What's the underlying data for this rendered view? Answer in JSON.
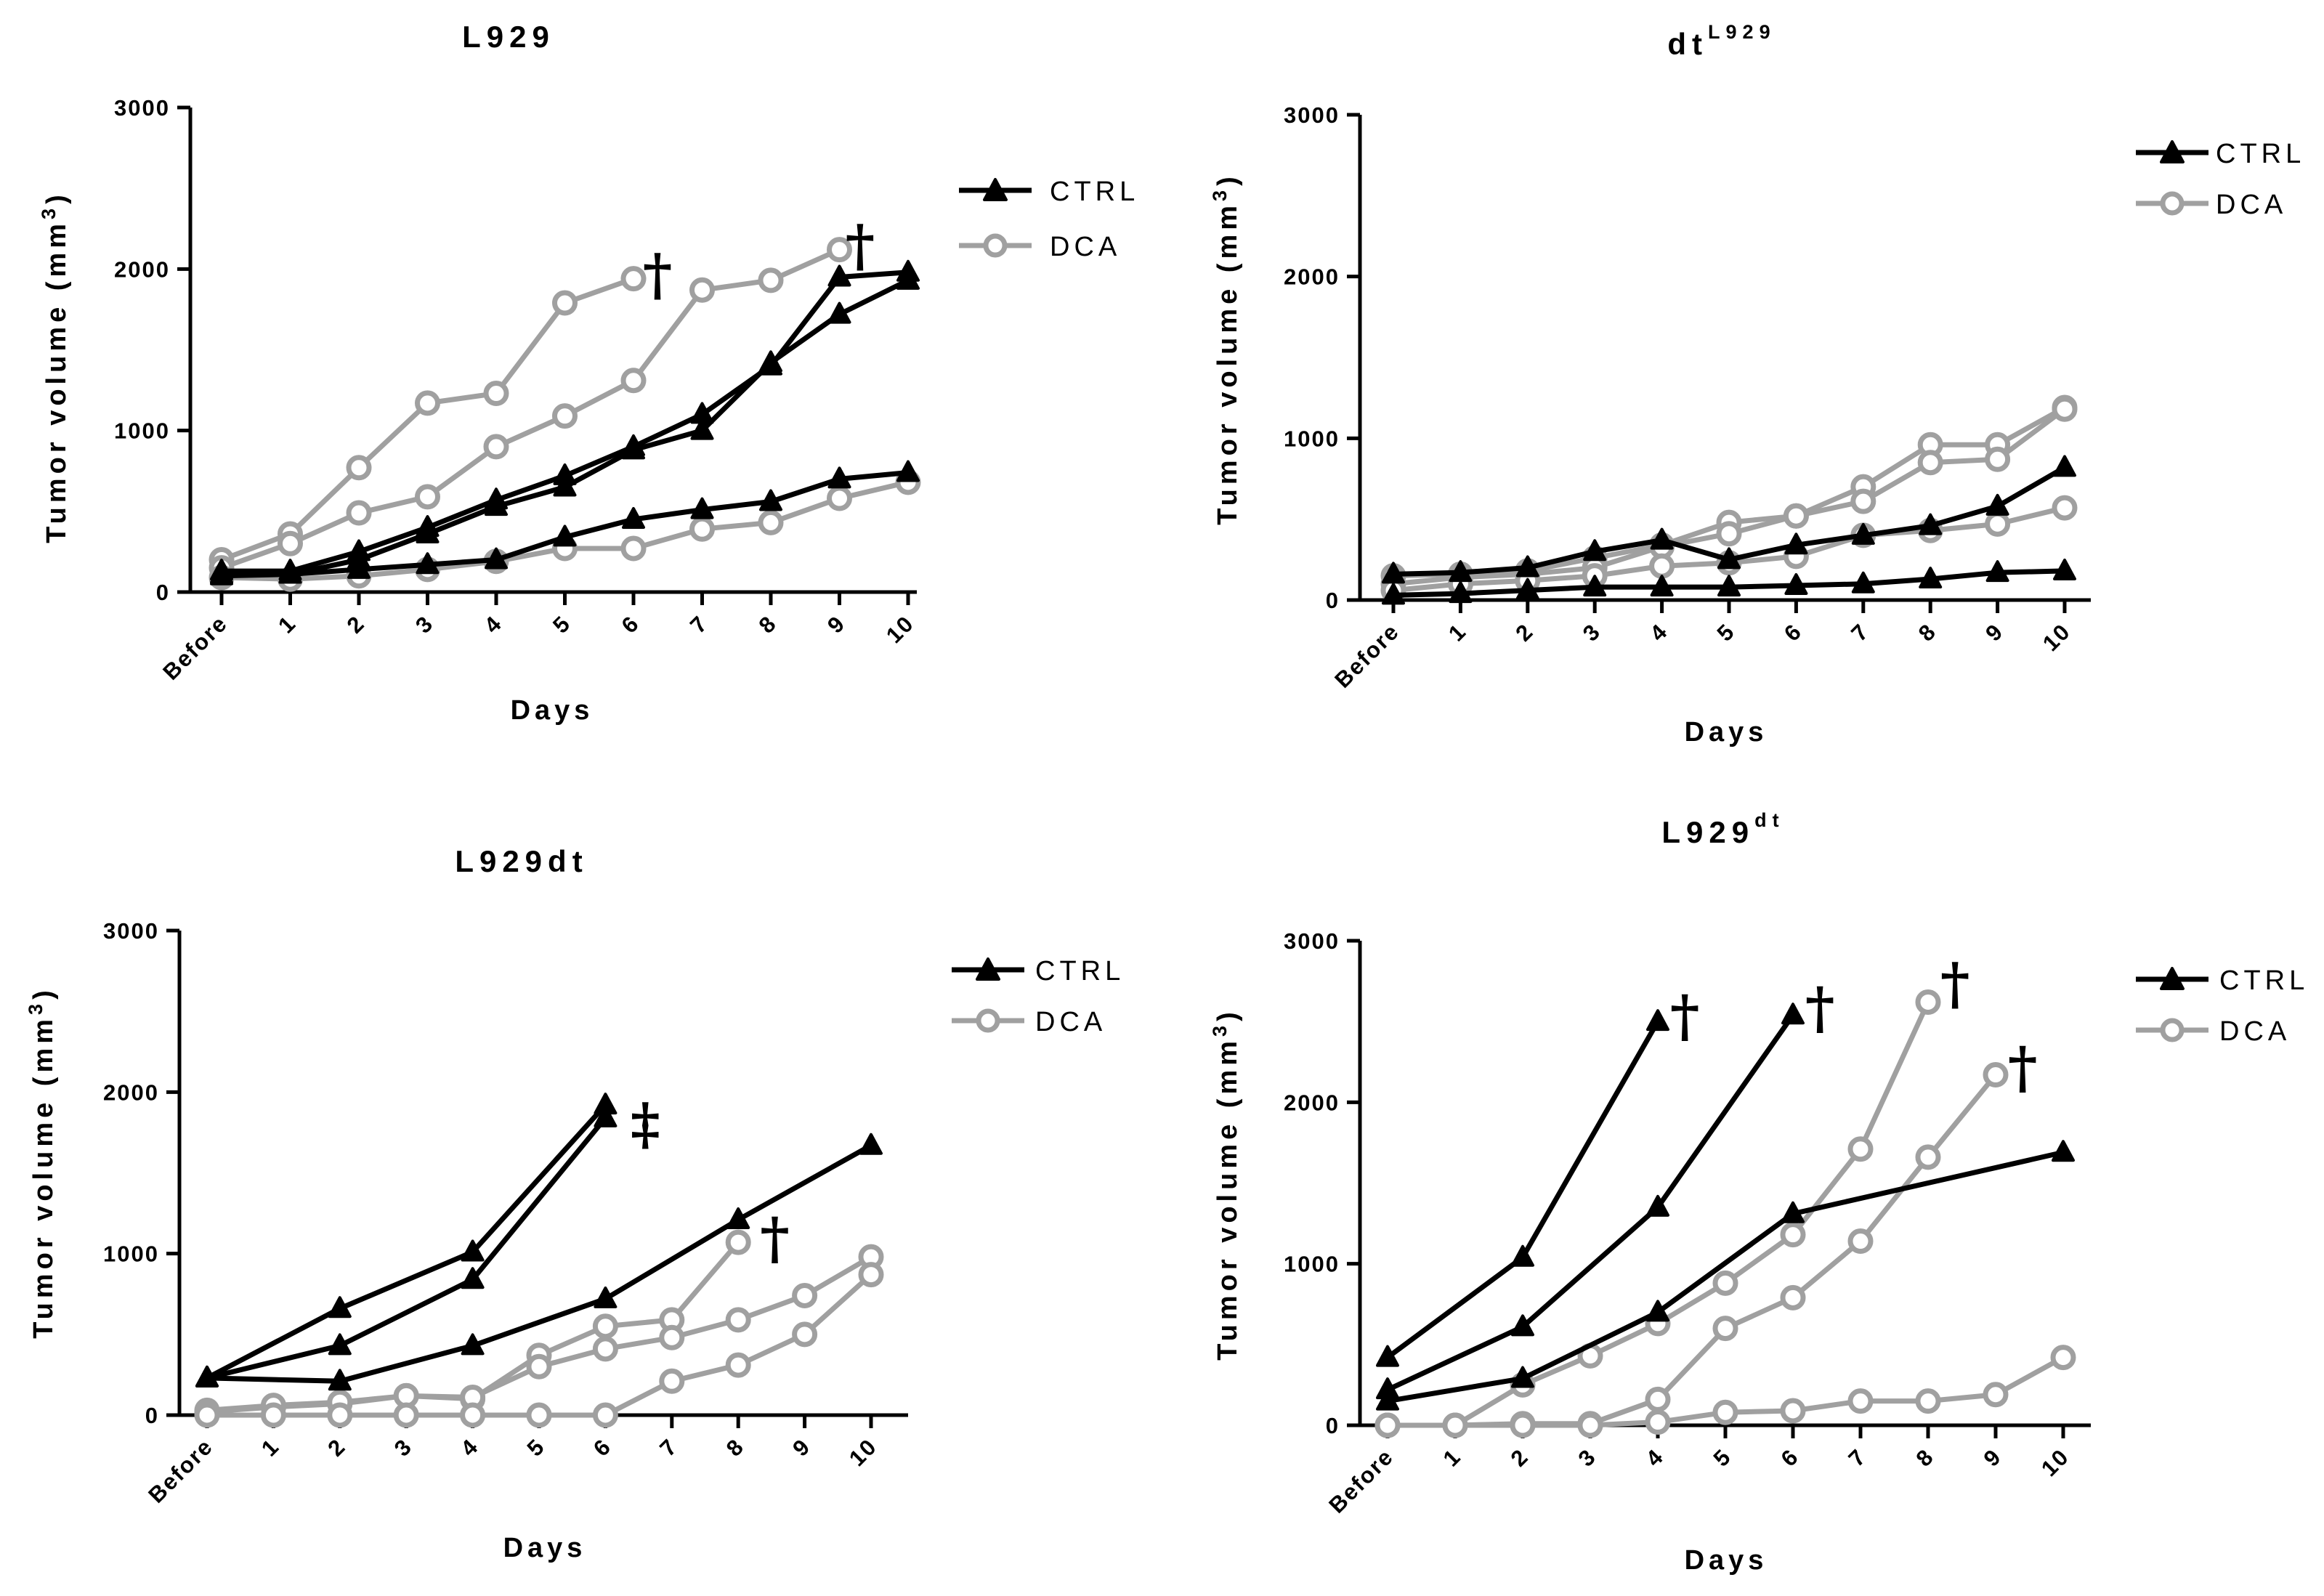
{
  "chart_data": [
    {
      "type": "line",
      "title": "L929",
      "title_sup": "",
      "xlabel": "Days",
      "ylabel": "Tumor volume (mm",
      "ylabel_sup": "3",
      "ylabel_close": ")",
      "ylim": [
        0,
        3000
      ],
      "yticks": [
        0,
        1000,
        2000,
        3000
      ],
      "categories": [
        "Before",
        "1",
        "2",
        "3",
        "4",
        "5",
        "6",
        "7",
        "8",
        "9",
        "10"
      ],
      "legend": [
        {
          "name": "CTRL",
          "color": "#000000",
          "marker": "triangle"
        },
        {
          "name": "DCA",
          "color": "#a0a0a0",
          "marker": "circle"
        }
      ],
      "series": [
        {
          "name": "CTRL",
          "values": [
            130,
            130,
            250,
            400,
            570,
            720,
            900,
            1100,
            1400,
            1950,
            1980
          ]
        },
        {
          "name": "CTRL",
          "values": [
            110,
            110,
            200,
            360,
            530,
            650,
            880,
            1000,
            1420,
            1720,
            1930
          ]
        },
        {
          "name": "CTRL",
          "values": [
            100,
            110,
            140,
            170,
            200,
            340,
            450,
            510,
            560,
            700,
            740
          ]
        },
        {
          "name": "DCA",
          "values": [
            200,
            360,
            770,
            1170,
            1230,
            1790,
            1940,
            null,
            null,
            null,
            null
          ]
        },
        {
          "name": "DCA",
          "values": [
            150,
            300,
            490,
            590,
            900,
            1090,
            1310,
            1870,
            1930,
            2120,
            null
          ]
        },
        {
          "name": "DCA",
          "values": [
            90,
            80,
            100,
            140,
            190,
            270,
            270,
            390,
            430,
            580,
            680
          ]
        }
      ],
      "annotations": [
        {
          "text": "†",
          "x": 6.35,
          "y": 1960
        },
        {
          "text": "†",
          "x": 9.3,
          "y": 2140
        }
      ]
    },
    {
      "type": "line",
      "title": "dt",
      "title_sup": "L929",
      "xlabel": "Days",
      "ylabel": "Tumor volume (mm",
      "ylabel_sup": "3",
      "ylabel_close": ")",
      "ylim": [
        0,
        3000
      ],
      "yticks": [
        0,
        1000,
        2000,
        3000
      ],
      "categories": [
        "Before",
        "1",
        "2",
        "3",
        "4",
        "5",
        "6",
        "7",
        "8",
        "9",
        "10"
      ],
      "legend": [
        {
          "name": "CTRL",
          "color": "#000000",
          "marker": "triangle"
        },
        {
          "name": "DCA",
          "color": "#a0a0a0",
          "marker": "circle"
        }
      ],
      "series": [
        {
          "name": "CTRL",
          "values": [
            160,
            170,
            200,
            300,
            370,
            250,
            340,
            400,
            460,
            580,
            820
          ]
        },
        {
          "name": "CTRL",
          "values": [
            30,
            40,
            60,
            80,
            80,
            80,
            90,
            100,
            130,
            170,
            180
          ]
        },
        {
          "name": "DCA",
          "values": [
            150,
            160,
            180,
            260,
            340,
            480,
            520,
            700,
            960,
            960,
            1190
          ]
        },
        {
          "name": "DCA",
          "values": [
            100,
            140,
            160,
            200,
            330,
            410,
            520,
            610,
            850,
            870,
            1180
          ]
        },
        {
          "name": "DCA",
          "values": [
            60,
            100,
            120,
            150,
            210,
            230,
            270,
            400,
            430,
            470,
            570
          ]
        }
      ],
      "annotations": []
    },
    {
      "type": "line",
      "title": "L929dt",
      "title_sup": "",
      "xlabel": "Days",
      "ylabel": "Tumor volume (mm",
      "ylabel_sup": "3",
      "ylabel_close": ")",
      "ylim": [
        0,
        3000
      ],
      "yticks": [
        0,
        1000,
        2000,
        3000
      ],
      "categories": [
        "Before",
        "1",
        "2",
        "3",
        "4",
        "5",
        "6",
        "7",
        "8",
        "9",
        "10"
      ],
      "legend": [
        {
          "name": "CTRL",
          "color": "#000000",
          "marker": "triangle"
        },
        {
          "name": "DCA",
          "color": "#a0a0a0",
          "marker": "circle"
        }
      ],
      "series": [
        {
          "name": "CTRL",
          "values": [
            230,
            null,
            660,
            null,
            1010,
            null,
            1920,
            null,
            null,
            null,
            null
          ]
        },
        {
          "name": "CTRL",
          "values": [
            230,
            null,
            430,
            null,
            840,
            null,
            1840,
            null,
            null,
            null,
            null
          ]
        },
        {
          "name": "CTRL",
          "values": [
            230,
            null,
            210,
            null,
            430,
            null,
            720,
            null,
            1210,
            null,
            1670
          ]
        },
        {
          "name": "DCA",
          "values": [
            20,
            50,
            70,
            120,
            100,
            370,
            550,
            590,
            1070,
            null,
            null
          ]
        },
        {
          "name": "DCA",
          "values": [
            30,
            60,
            80,
            120,
            110,
            300,
            410,
            480,
            590,
            740,
            980
          ]
        },
        {
          "name": "DCA",
          "values": [
            0,
            0,
            0,
            0,
            0,
            0,
            0,
            210,
            310,
            500,
            870
          ]
        }
      ],
      "annotations": [
        {
          "text": "‡",
          "x": 6.6,
          "y": 1800
        },
        {
          "text": "†",
          "x": 8.55,
          "y": 1090
        }
      ]
    },
    {
      "type": "line",
      "title": "L929",
      "title_sup": "dt",
      "xlabel": "Days",
      "ylabel": "Tumor volume (mm",
      "ylabel_sup": "3",
      "ylabel_close": ")",
      "ylim": [
        0,
        3000
      ],
      "yticks": [
        0,
        1000,
        2000,
        3000
      ],
      "categories": [
        "Before",
        "1",
        "2",
        "3",
        "4",
        "5",
        "6",
        "7",
        "8",
        "9",
        "10"
      ],
      "legend": [
        {
          "name": "CTRL",
          "color": "#000000",
          "marker": "triangle"
        },
        {
          "name": "DCA",
          "color": "#a0a0a0",
          "marker": "circle"
        }
      ],
      "series": [
        {
          "name": "CTRL",
          "values": [
            420,
            null,
            1040,
            null,
            2500,
            null,
            null,
            null,
            null,
            null,
            null
          ]
        },
        {
          "name": "CTRL",
          "values": [
            220,
            null,
            610,
            null,
            1350,
            null,
            2540,
            null,
            null,
            null,
            null
          ]
        },
        {
          "name": "CTRL",
          "values": [
            150,
            null,
            290,
            null,
            700,
            null,
            1310,
            null,
            null,
            null,
            1690
          ]
        },
        {
          "name": "DCA",
          "values": [
            0,
            0,
            250,
            430,
            630,
            880,
            1180,
            1710,
            2620,
            null,
            null
          ]
        },
        {
          "name": "DCA",
          "values": [
            0,
            0,
            10,
            10,
            160,
            600,
            790,
            1140,
            1660,
            2170,
            null
          ]
        },
        {
          "name": "DCA",
          "values": [
            0,
            0,
            0,
            0,
            20,
            80,
            90,
            150,
            150,
            190,
            420
          ]
        }
      ],
      "annotations": [
        {
          "text": "†",
          "x": 4.4,
          "y": 2530
        },
        {
          "text": "†",
          "x": 6.4,
          "y": 2580
        },
        {
          "text": "†",
          "x": 8.4,
          "y": 2730
        },
        {
          "text": "†",
          "x": 9.4,
          "y": 2210
        }
      ]
    }
  ]
}
